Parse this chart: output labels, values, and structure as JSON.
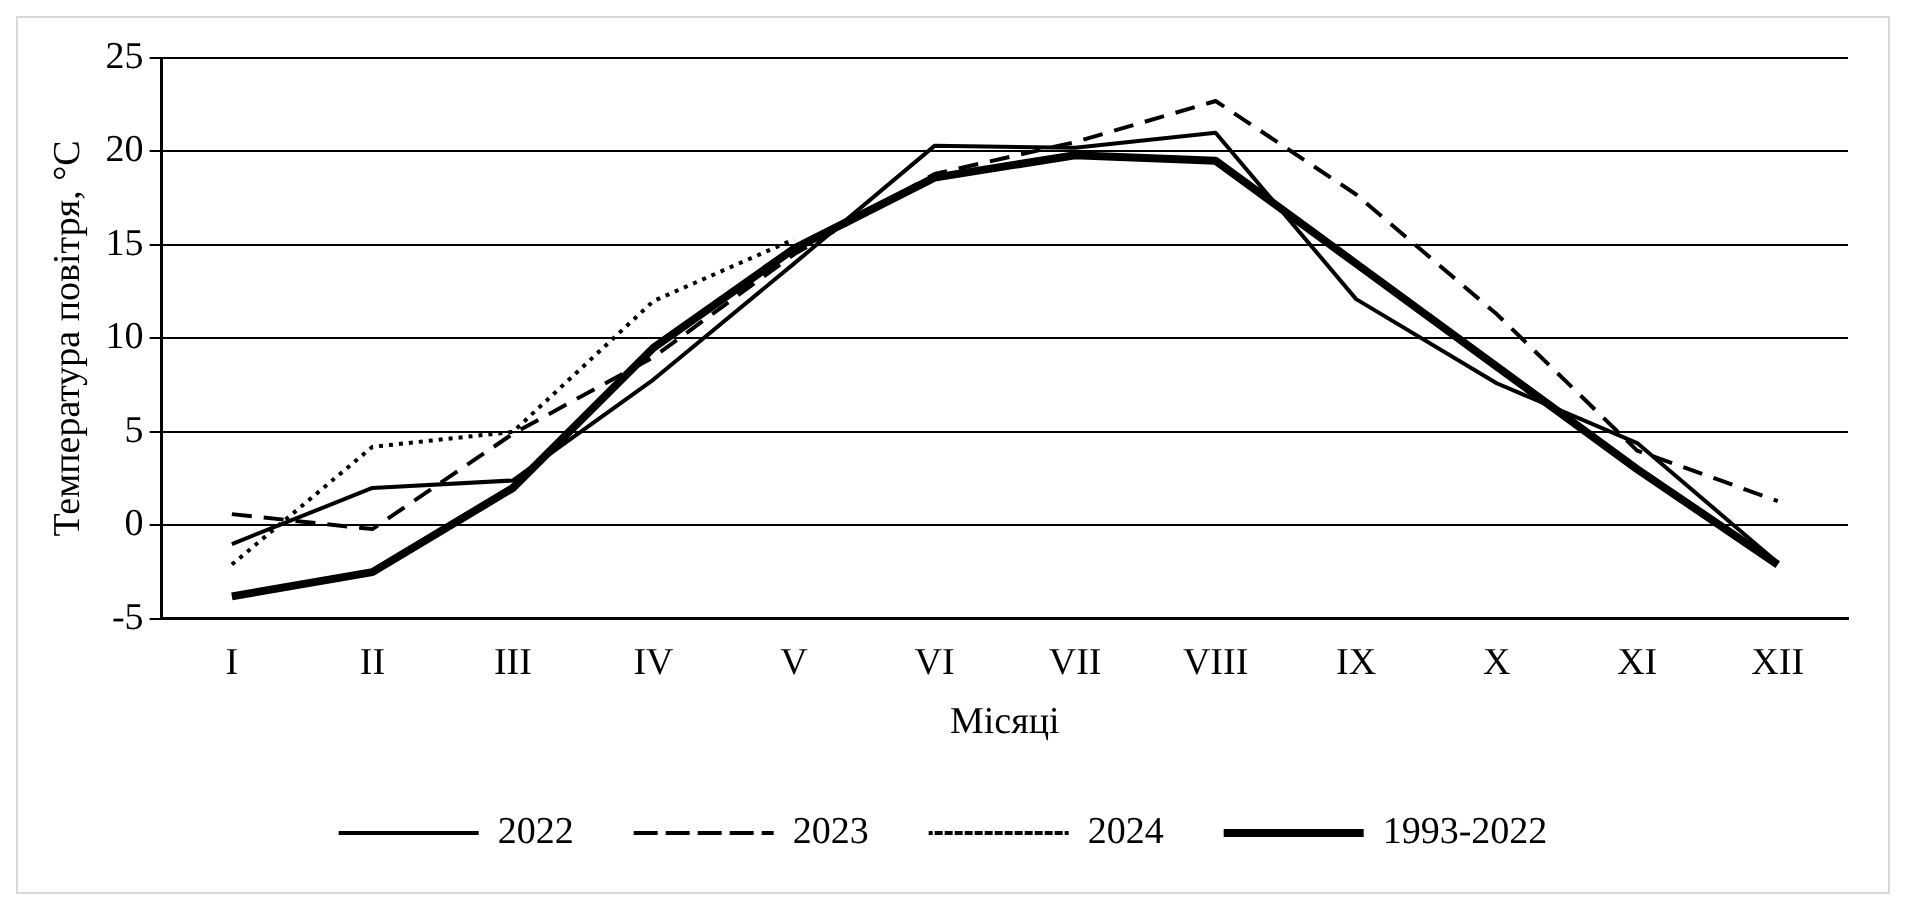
{
  "chart_data": {
    "type": "line",
    "xlabel": "Місяці",
    "ylabel": "Температура повітря, °C",
    "categories": [
      "I",
      "II",
      "III",
      "IV",
      "V",
      "VI",
      "VII",
      "VIII",
      "IX",
      "X",
      "XI",
      "XII"
    ],
    "series": [
      {
        "name": "2022",
        "color": "#000000",
        "line_style": "solid",
        "values": [
          -1.0,
          2.0,
          2.4,
          7.8,
          14.0,
          20.3,
          20.2,
          21.0,
          12.1,
          7.6,
          4.4,
          -2.0
        ]
      },
      {
        "name": "2023",
        "color": "#000000",
        "line_style": "dashed",
        "values": [
          0.6,
          -0.2,
          4.9,
          9.0,
          14.5,
          18.8,
          20.5,
          22.7,
          17.7,
          11.3,
          4.0,
          1.3
        ]
      },
      {
        "name": "2024",
        "color": "#000000",
        "line_style": "dotted",
        "values": [
          -2.1,
          4.2,
          5.0,
          12.0,
          15.3,
          null,
          null,
          null,
          null,
          null,
          null,
          null
        ]
      },
      {
        "name": "1993-2022",
        "color": "#000000",
        "line_style": "solid",
        "values": [
          -3.8,
          -2.5,
          2.0,
          9.5,
          14.8,
          18.6,
          19.8,
          19.5,
          14.0,
          8.5,
          3.0,
          -2.1
        ]
      }
    ],
    "ylim": [
      -5,
      25
    ],
    "yticks": [
      -5,
      0,
      5,
      10,
      15,
      20,
      25
    ],
    "grid": "y",
    "legend": "bottom",
    "marker": "none"
  }
}
